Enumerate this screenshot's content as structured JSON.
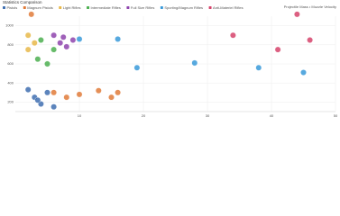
{
  "chart_data": {
    "type": "scatter",
    "title": "Statistics Comparison",
    "subtitle": "Projectile Mass • Muzzle Velocity",
    "xlim": [
      0,
      50
    ],
    "xticks": [
      10,
      20,
      30,
      40,
      50
    ],
    "ylim": [
      100,
      1100
    ],
    "yticks": [
      200,
      400,
      600,
      800,
      1000
    ],
    "grid": true,
    "series": [
      {
        "name": "Pistols",
        "color": "#3f6fb0",
        "x": [
          2,
          3,
          4,
          5,
          6,
          3.5
        ],
        "values": [
          330,
          250,
          180,
          300,
          150,
          220
        ]
      },
      {
        "name": "Magnum Pistols",
        "color": "#e07b39",
        "x": [
          2.5,
          6,
          8,
          10,
          13,
          15,
          16
        ],
        "values": [
          1120,
          300,
          250,
          280,
          320,
          250,
          300
        ]
      },
      {
        "name": "Light Rifles",
        "color": "#e8b84a",
        "x": [
          2,
          2,
          3
        ],
        "values": [
          900,
          750,
          820
        ]
      },
      {
        "name": "Intermediate Rifles",
        "color": "#4caf50",
        "x": [
          4,
          3.5,
          6,
          5
        ],
        "values": [
          850,
          650,
          750,
          600
        ]
      },
      {
        "name": "Full Size Rifles",
        "color": "#8e44ad",
        "x": [
          6,
          7.5,
          9,
          8,
          7
        ],
        "values": [
          900,
          880,
          850,
          780,
          820
        ]
      },
      {
        "name": "Sporting/Magnum Rifles",
        "color": "#3a9ad9",
        "x": [
          10,
          16,
          19,
          28,
          38,
          45
        ],
        "values": [
          860,
          860,
          560,
          610,
          560,
          510
        ]
      },
      {
        "name": "Anti-Materiel Rifles",
        "color": "#d6436b",
        "x": [
          34,
          44,
          46,
          41
        ],
        "values": [
          900,
          1120,
          850,
          750
        ]
      }
    ]
  }
}
